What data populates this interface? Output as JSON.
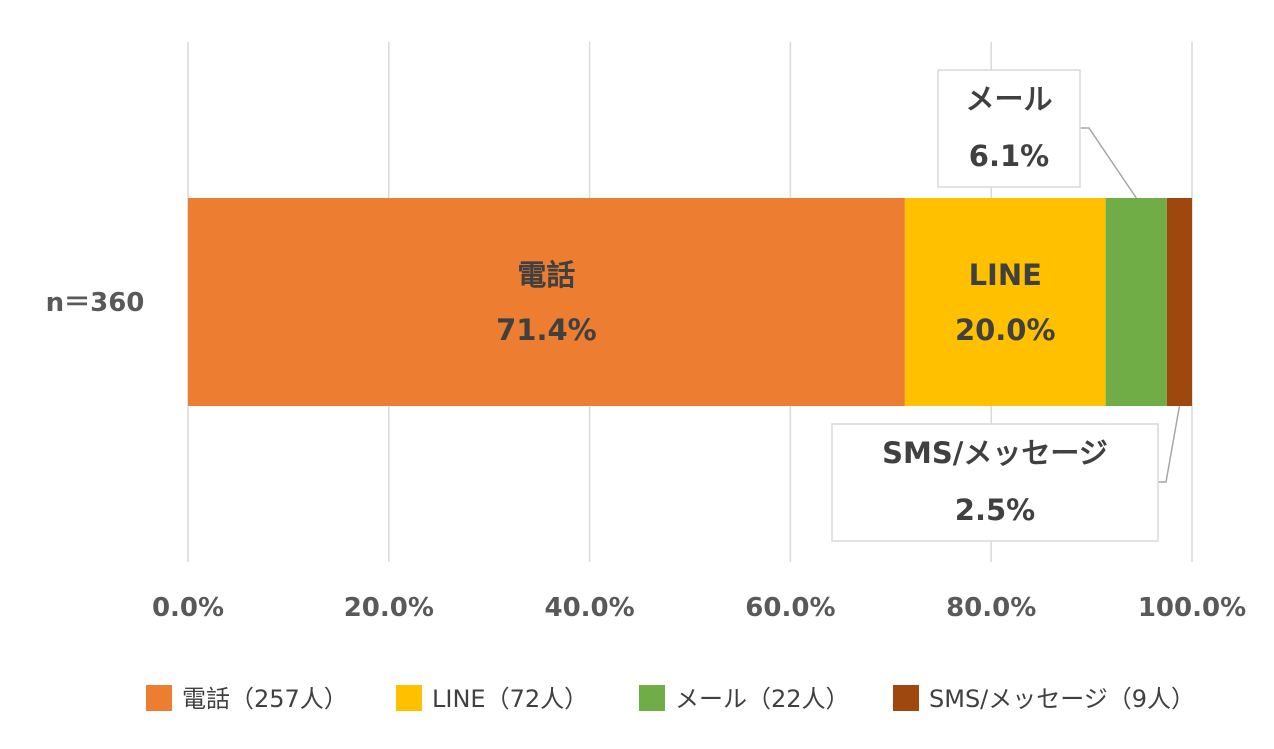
{
  "chart_data": {
    "type": "bar",
    "orientation": "horizontal",
    "stacked": "percent",
    "category": "n＝360",
    "xlim": [
      0,
      100
    ],
    "x_ticks": [
      "0.0%",
      "20.0%",
      "40.0%",
      "60.0%",
      "80.0%",
      "100.0%"
    ],
    "grid": "vertical",
    "legend_position": "bottom",
    "series": [
      {
        "name": "電話",
        "value": 71.4,
        "value_label": "71.4%",
        "legend": "電話（257人）",
        "color": "#ED7D31"
      },
      {
        "name": "LINE",
        "value": 20.0,
        "value_label": "20.0%",
        "legend": "LINE（72人）",
        "color": "#FFC000"
      },
      {
        "name": "メール",
        "value": 6.1,
        "value_label": "6.1%",
        "legend": "メール（22人）",
        "color": "#70AD47"
      },
      {
        "name": "SMS/メッセージ",
        "value": 2.5,
        "value_label": "2.5%",
        "legend": "SMS/メッセージ（9人）",
        "color": "#9E480E"
      }
    ]
  }
}
